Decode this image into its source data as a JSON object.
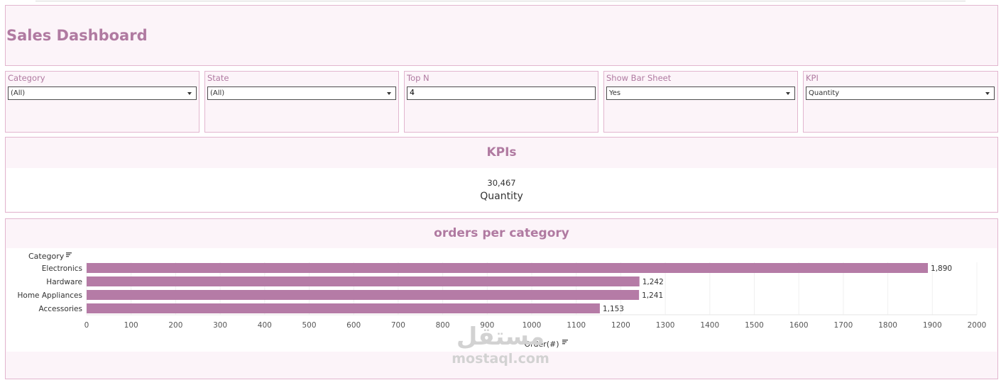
{
  "dashboard": {
    "title": "Sales Dashboard"
  },
  "filters": [
    {
      "label": "Category",
      "value": "(All)",
      "type": "dropdown"
    },
    {
      "label": "State",
      "value": "(All)",
      "type": "dropdown"
    },
    {
      "label": "Top N",
      "value": "4",
      "type": "text"
    },
    {
      "label": "Show Bar Sheet",
      "value": "Yes",
      "type": "dropdown"
    },
    {
      "label": "KPI",
      "value": "Quantity",
      "type": "dropdown"
    }
  ],
  "kpis": {
    "title": "KPIs",
    "value": "30,467",
    "label": "Quantity"
  },
  "chart_data": {
    "type": "bar",
    "orientation": "horizontal",
    "title": "orders per category",
    "category_header": "Category",
    "xlabel": "Order(#)",
    "categories": [
      "Electronics",
      "Hardware",
      "Home Appliances",
      "Accessories"
    ],
    "values": [
      1890,
      1242,
      1241,
      1153
    ],
    "value_labels": [
      "1,890",
      "1,242",
      "1,241",
      "1,153"
    ],
    "xlim": [
      0,
      2000
    ],
    "xticks": [
      0,
      100,
      200,
      300,
      400,
      500,
      600,
      700,
      800,
      900,
      1000,
      1100,
      1200,
      1300,
      1400,
      1500,
      1600,
      1700,
      1800,
      1900,
      2000
    ],
    "bar_color": "#b57ba6",
    "grid": true
  },
  "watermark": {
    "arabic": "مستقل",
    "latin": "mostaql.com"
  },
  "colors": {
    "accent": "#b07aa1",
    "panel_bg": "#fcf4f9",
    "panel_border": "#e2b6cf"
  }
}
